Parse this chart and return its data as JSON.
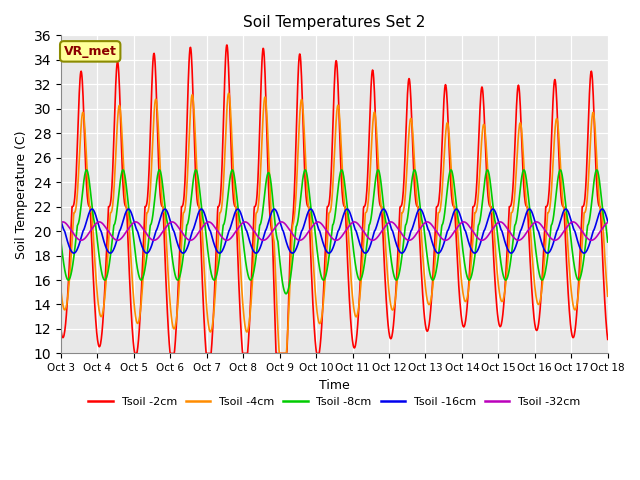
{
  "title": "Soil Temperatures Set 2",
  "xlabel": "Time",
  "ylabel": "Soil Temperature (C)",
  "ylim": [
    10,
    36
  ],
  "yticks": [
    10,
    12,
    14,
    16,
    18,
    20,
    22,
    24,
    26,
    28,
    30,
    32,
    34,
    36
  ],
  "xlim_days": [
    0,
    15
  ],
  "xtick_labels": [
    "Oct 3",
    "Oct 4",
    "Oct 5",
    "Oct 6",
    "Oct 7",
    "Oct 8",
    "Oct 9",
    "Oct 10",
    "Oct 11",
    "Oct 12",
    "Oct 13",
    "Oct 14",
    "Oct 15",
    "Oct 16",
    "Oct 17",
    "Oct 18"
  ],
  "colors": {
    "Tsoil -2cm": "#FF0000",
    "Tsoil -4cm": "#FF8C00",
    "Tsoil -8cm": "#00CC00",
    "Tsoil -16cm": "#0000EE",
    "Tsoil -32cm": "#BB00BB"
  },
  "background_color": "#DCDCDC",
  "plot_background": "#E8E8E8",
  "annotation_text": "VR_met",
  "annotation_box_color": "#FFFF99",
  "annotation_box_edge": "#8B8B00",
  "legend_labels": [
    "Tsoil -2cm",
    "Tsoil -4cm",
    "Tsoil -8cm",
    "Tsoil -16cm",
    "Tsoil -32cm"
  ]
}
